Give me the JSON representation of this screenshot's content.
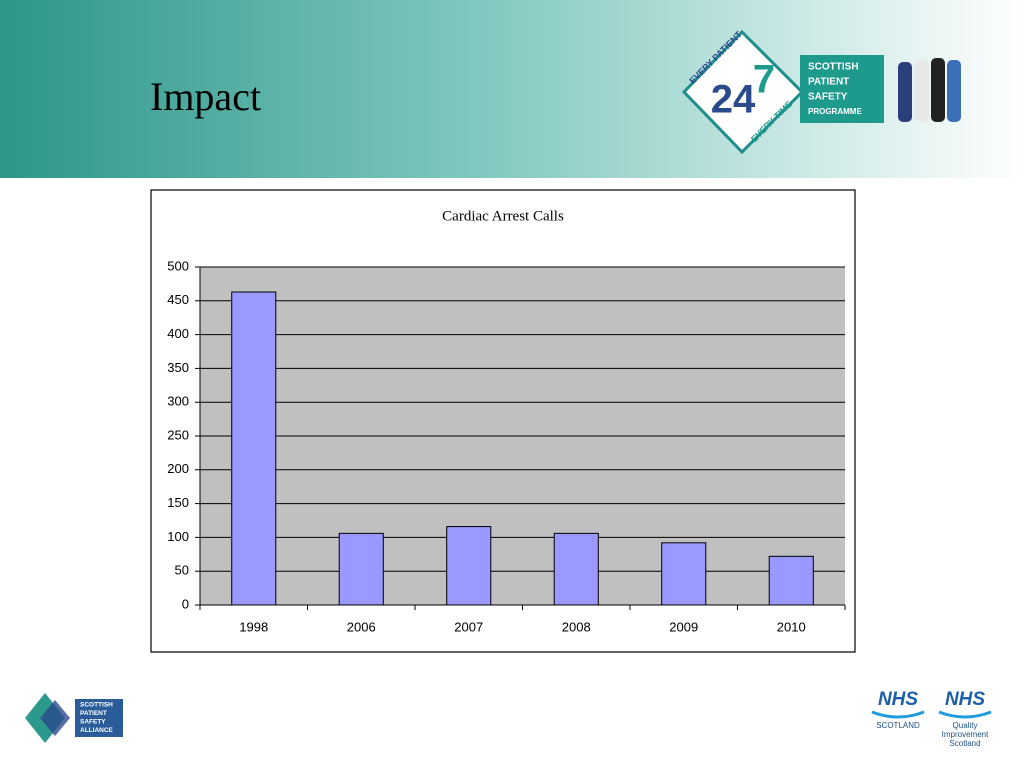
{
  "slide": {
    "title": "Impact"
  },
  "header_logo": {
    "ring_top": "EVERY PATIENT",
    "number_left": "24",
    "number_right": "7",
    "ring_bottom": "EVERY TIME",
    "lines": [
      "SCOTTISH",
      "PATIENT",
      "SAFETY",
      "PROGRAMME"
    ]
  },
  "footer_left_logo": {
    "lines": [
      "SCOTTISH",
      "PATIENT",
      "SAFETY",
      "ALLIANCE"
    ]
  },
  "footer_right_logos": [
    {
      "mark": "NHS",
      "lines": [
        "SCOTLAND"
      ]
    },
    {
      "mark": "NHS",
      "lines": [
        "Quality",
        "Improvement",
        "Scotland"
      ]
    }
  ],
  "chart_data": {
    "type": "bar",
    "title": "Cardiac Arrest Calls",
    "categories": [
      "1998",
      "2006",
      "2007",
      "2008",
      "2009",
      "2010"
    ],
    "values": [
      463,
      106,
      116,
      106,
      92,
      72
    ],
    "color": "#9999ff",
    "ylim": [
      0,
      500
    ],
    "yticks": [
      0,
      50,
      100,
      150,
      200,
      250,
      300,
      350,
      400,
      450,
      500
    ],
    "grid": true
  }
}
